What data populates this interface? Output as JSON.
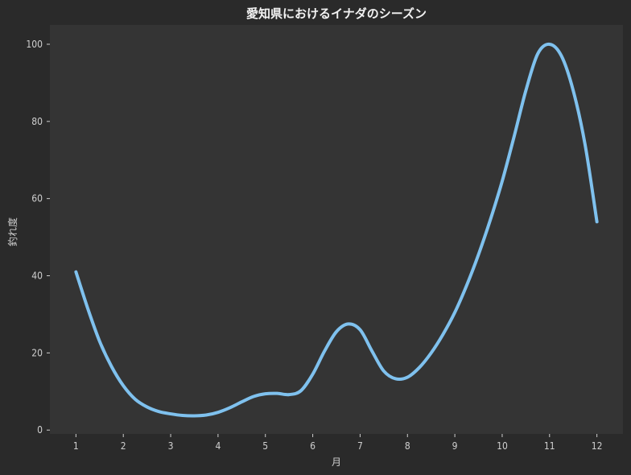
{
  "chart_data": {
    "type": "line",
    "title": "愛知県におけるイナダのシーズン",
    "xlabel": "月",
    "ylabel": "釣れ度",
    "x": [
      1,
      2,
      3,
      4,
      5,
      6,
      7,
      8,
      9,
      10,
      11,
      12
    ],
    "x_ticks": [
      "1",
      "2",
      "3",
      "4",
      "5",
      "6",
      "7",
      "8",
      "9",
      "10",
      "11",
      "12"
    ],
    "y_ticks": [
      "0",
      "20",
      "40",
      "60",
      "80",
      "100"
    ],
    "xlim": [
      0.45,
      12.55
    ],
    "ylim": [
      -1,
      105
    ],
    "grid": false,
    "colors": {
      "line": "#7fc1ee",
      "plot_background": "#343434",
      "figure_background": "#2a2a2a",
      "text": "#cfcfcf",
      "title": "#f2f2f2"
    },
    "series": [
      {
        "x": [
          1,
          1.25,
          1.5,
          1.75,
          2,
          2.25,
          2.5,
          2.75,
          3,
          3.25,
          3.5,
          3.75,
          4,
          4.25,
          4.5,
          4.75,
          5,
          5.25,
          5.5,
          5.75,
          6,
          6.25,
          6.5,
          6.75,
          7,
          7.25,
          7.5,
          7.75,
          8,
          8.25,
          8.5,
          8.75,
          9,
          9.25,
          9.5,
          9.75,
          10,
          10.25,
          10.5,
          10.75,
          11,
          11.25,
          11.5,
          11.75,
          12
        ],
        "values": [
          41,
          31.5,
          23,
          16.5,
          11.5,
          8,
          6,
          4.8,
          4.2,
          3.8,
          3.7,
          3.9,
          4.6,
          5.8,
          7.3,
          8.7,
          9.4,
          9.5,
          9.2,
          10.2,
          14.5,
          20.5,
          25.5,
          27.5,
          26,
          20.5,
          15.3,
          13.3,
          13.7,
          16.2,
          20,
          24.8,
          30.5,
          37.5,
          45.5,
          54.5,
          64.5,
          76,
          88,
          97.5,
          100,
          97,
          88,
          74,
          54
        ]
      }
    ]
  }
}
